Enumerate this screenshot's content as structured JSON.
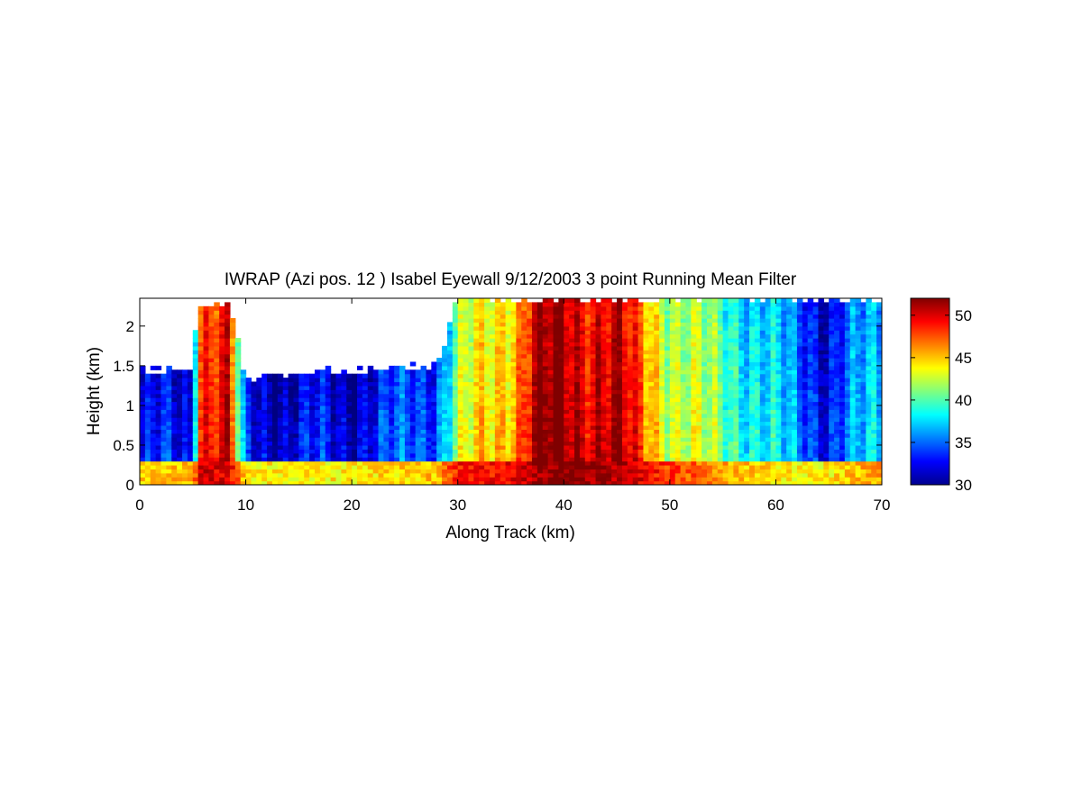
{
  "chart_data": {
    "type": "heatmap",
    "title": "IWRAP (Azi pos. 12 ) Isabel Eyewall 9/12/2003 3 point Running Mean Filter",
    "xlabel": "Along Track (km)",
    "ylabel": "Height (km)",
    "xlim": [
      0,
      70
    ],
    "ylim": [
      0,
      2.35
    ],
    "xticks": [
      0,
      10,
      20,
      30,
      40,
      50,
      60,
      70
    ],
    "yticks": [
      0,
      0.5,
      1,
      1.5,
      2
    ],
    "xtick_labels": [
      "0",
      "10",
      "20",
      "30",
      "40",
      "50",
      "60",
      "70"
    ],
    "ytick_labels": [
      "0",
      "0.5",
      "1",
      "1.5",
      "2"
    ],
    "colorbar": {
      "min": 30,
      "max": 52,
      "ticks": [
        30,
        35,
        40,
        45,
        50
      ],
      "tick_labels": [
        "30",
        "35",
        "40",
        "45",
        "50"
      ],
      "colormap": "jet"
    },
    "grid": false,
    "description_profile": {
      "along_track_km": [
        0,
        5,
        5.5,
        8.5,
        10,
        20,
        28,
        30,
        33,
        36,
        37,
        40,
        45,
        47,
        50,
        53,
        57,
        62,
        65,
        70
      ],
      "column_max_value": [
        33,
        33,
        50,
        50,
        33,
        33,
        36,
        42,
        45,
        48,
        51,
        52,
        51,
        48,
        44,
        42,
        40,
        36,
        34,
        38
      ],
      "echo_top_km": [
        1.45,
        1.45,
        2.3,
        2.3,
        1.35,
        1.45,
        1.5,
        2.35,
        2.35,
        2.35,
        2.35,
        2.35,
        2.35,
        2.35,
        2.35,
        2.35,
        2.35,
        2.35,
        2.35,
        2.35
      ],
      "surface_layer_value": [
        45,
        45,
        50,
        50,
        44,
        44,
        45,
        49,
        49,
        50,
        51,
        52,
        51,
        50,
        48,
        47,
        45,
        44,
        44,
        46
      ]
    }
  }
}
